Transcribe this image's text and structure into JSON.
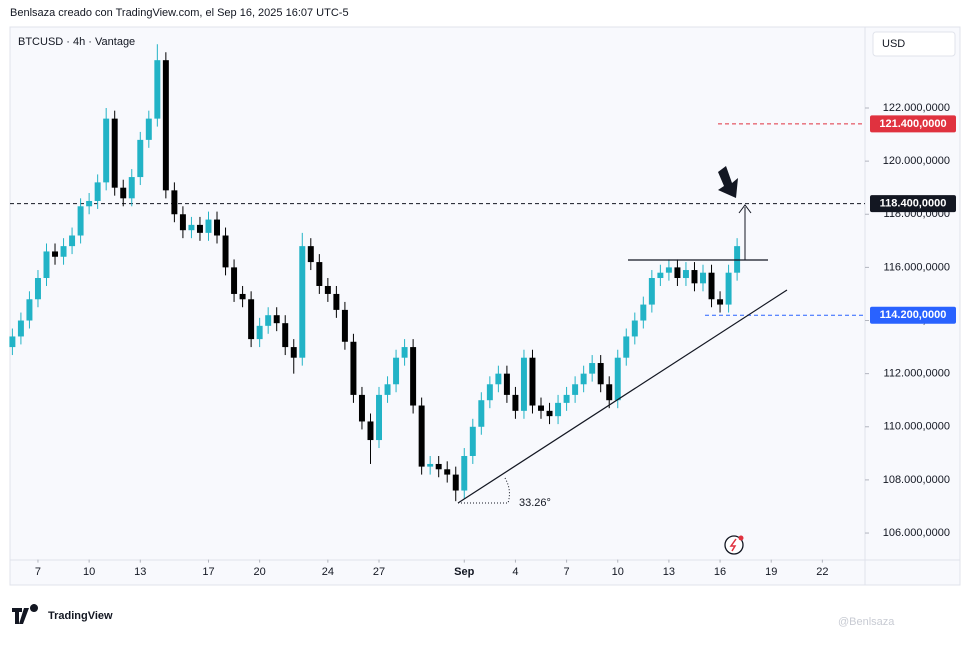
{
  "header": {
    "attribution": "Benlsaza creado con TradingView.com, el Sep 16, 2025 16:07 UTC-5",
    "currency": "USD"
  },
  "footer": {
    "logo": "TradingView",
    "watermark": "@Benlsaza"
  },
  "chart_data": {
    "type": "candlestick",
    "title": "BTCUSD · 4h · Vantage",
    "up_color": "#22b3c6",
    "down_color": "#000000",
    "x": [
      5.5,
      6,
      6.5,
      7,
      7.5,
      8,
      8.5,
      9,
      9.5,
      10,
      10.5,
      11,
      11.5,
      12,
      12.5,
      13,
      13.5,
      14,
      14.5,
      15,
      15.5,
      16,
      16.5,
      17,
      17.5,
      18,
      18.5,
      19,
      19.5,
      20,
      20.5,
      21,
      21.5,
      22,
      22.5,
      23,
      23.5,
      24,
      24.5,
      25,
      25.5,
      26,
      26.5,
      27,
      27.5,
      28,
      28.5,
      29,
      29.5,
      30,
      30.5,
      31,
      31.5,
      32,
      32.5,
      33,
      33.5,
      34,
      34.5,
      35,
      35.5,
      36,
      36.5,
      37,
      37.5,
      38,
      38.5,
      39,
      39.5,
      40,
      40.5,
      41,
      41.5,
      42,
      42.5,
      43,
      43.5,
      44,
      44.5,
      45,
      45.5,
      46,
      46.5,
      47,
      47.5,
      48
    ],
    "open": [
      113000,
      113400,
      114000,
      114800,
      115600,
      116600,
      116400,
      116800,
      117200,
      118300,
      118500,
      119200,
      121600,
      119000,
      118600,
      119400,
      120800,
      121600,
      123800,
      118900,
      118000,
      117400,
      117600,
      117300,
      117800,
      117200,
      116000,
      115000,
      114800,
      113300,
      113800,
      114200,
      113900,
      113000,
      112600,
      116800,
      116200,
      115300,
      115000,
      114400,
      113200,
      111200,
      110200,
      109500,
      111200,
      111600,
      112600,
      113000,
      110800,
      108500,
      108600,
      108400,
      108200,
      107600,
      108900,
      110000,
      111000,
      111600,
      112000,
      111200,
      110600,
      112600,
      110800,
      110600,
      110400,
      110900,
      111200,
      111600,
      112000,
      112400,
      111600,
      111000,
      112600,
      113400,
      114000,
      114600,
      115600,
      115800,
      116000,
      115600,
      115900,
      115400,
      115800,
      114800,
      114600,
      115800
    ],
    "high": [
      113700,
      114300,
      115100,
      115900,
      116900,
      116900,
      117100,
      117500,
      118600,
      118800,
      119500,
      122000,
      121900,
      119300,
      119700,
      121100,
      121900,
      124400,
      124100,
      119200,
      118300,
      117900,
      117900,
      118100,
      118100,
      117500,
      116300,
      115300,
      115100,
      114100,
      114500,
      114500,
      114200,
      113300,
      117300,
      117100,
      116500,
      115600,
      115300,
      114700,
      113500,
      111500,
      110500,
      111500,
      111900,
      112900,
      113300,
      113300,
      111100,
      108900,
      108900,
      108700,
      108500,
      109200,
      110300,
      111300,
      111900,
      112300,
      112300,
      111500,
      112900,
      112900,
      111100,
      110900,
      111200,
      111500,
      111900,
      112300,
      112700,
      112700,
      111900,
      112900,
      113700,
      114300,
      114900,
      115900,
      116100,
      116300,
      116300,
      116200,
      116200,
      116100,
      116100,
      115100,
      116100,
      117100
    ],
    "low": [
      112700,
      113100,
      113700,
      114500,
      115300,
      116100,
      116100,
      116500,
      116900,
      118000,
      118200,
      118900,
      118700,
      118300,
      118300,
      119100,
      120500,
      121300,
      118600,
      117700,
      117100,
      117100,
      117000,
      117000,
      116900,
      115700,
      114700,
      114500,
      113000,
      113000,
      113500,
      113600,
      112700,
      112000,
      112300,
      115900,
      115000,
      114700,
      114100,
      112900,
      110900,
      109900,
      108600,
      109200,
      110900,
      111300,
      112300,
      110500,
      108200,
      108200,
      108100,
      107900,
      107200,
      107300,
      108600,
      109700,
      110700,
      111300,
      110900,
      110300,
      110300,
      110500,
      110300,
      110100,
      110100,
      110600,
      110900,
      111300,
      111700,
      111300,
      110700,
      110700,
      112300,
      113100,
      113700,
      114300,
      115300,
      115500,
      115300,
      115300,
      115100,
      115100,
      114500,
      114300,
      114300,
      115500
    ],
    "close": [
      113400,
      114000,
      114800,
      115600,
      116600,
      116400,
      116800,
      117200,
      118300,
      118500,
      119200,
      121600,
      119000,
      118600,
      119400,
      120800,
      121600,
      123800,
      118900,
      118000,
      117400,
      117600,
      117300,
      117800,
      117200,
      116000,
      115000,
      114800,
      113300,
      113800,
      114200,
      113900,
      113000,
      112600,
      116800,
      116200,
      115300,
      115000,
      114400,
      113200,
      111200,
      110200,
      109500,
      111200,
      111600,
      112600,
      113000,
      110800,
      108500,
      108600,
      108400,
      108200,
      107600,
      108900,
      110000,
      111000,
      111600,
      112000,
      111200,
      110600,
      112600,
      110800,
      110600,
      110400,
      110900,
      111200,
      111600,
      112000,
      112400,
      111600,
      111000,
      112600,
      113400,
      114000,
      114600,
      115600,
      115800,
      116000,
      115600,
      115900,
      115400,
      115800,
      114800,
      114600,
      115800,
      116800
    ],
    "xlim": [
      5.36,
      55.5
    ],
    "xticks": [
      7,
      10,
      13,
      17,
      20,
      24,
      27,
      {
        "value": 32,
        "label": "Sep"
      },
      {
        "value": 35,
        "label": "4"
      },
      {
        "value": 38,
        "label": "7"
      },
      {
        "value": 41,
        "label": "10"
      },
      {
        "value": 44,
        "label": "13"
      },
      {
        "value": 47,
        "label": "16"
      },
      {
        "value": 50,
        "label": "19"
      },
      {
        "value": 53,
        "label": "22"
      }
    ],
    "ylim": [
      105000,
      125000
    ],
    "yticks": [
      {
        "value": 106000,
        "label": "106.000,0000"
      },
      {
        "value": 108000,
        "label": "108.000,0000"
      },
      {
        "value": 110000,
        "label": "110.000,0000"
      },
      {
        "value": 112000,
        "label": "112.000,0000"
      },
      {
        "value": 114000,
        "label": "114.000,0000"
      },
      {
        "value": 116000,
        "label": "116.000,0000"
      },
      {
        "value": 118000,
        "label": "118.000,0000"
      },
      {
        "value": 120000,
        "label": "120.000,0000"
      },
      {
        "value": 122000,
        "label": "122.000,0000"
      }
    ],
    "price_lines": [
      {
        "value": 121400,
        "label": "121.400,0000",
        "color": "#e0323f"
      },
      {
        "value": 118400,
        "label": "118.400,0000",
        "color": "#131722"
      },
      {
        "value": 114200,
        "label": "114.200,0000",
        "color": "#2962ff"
      }
    ],
    "angle_label": "33.26°"
  }
}
